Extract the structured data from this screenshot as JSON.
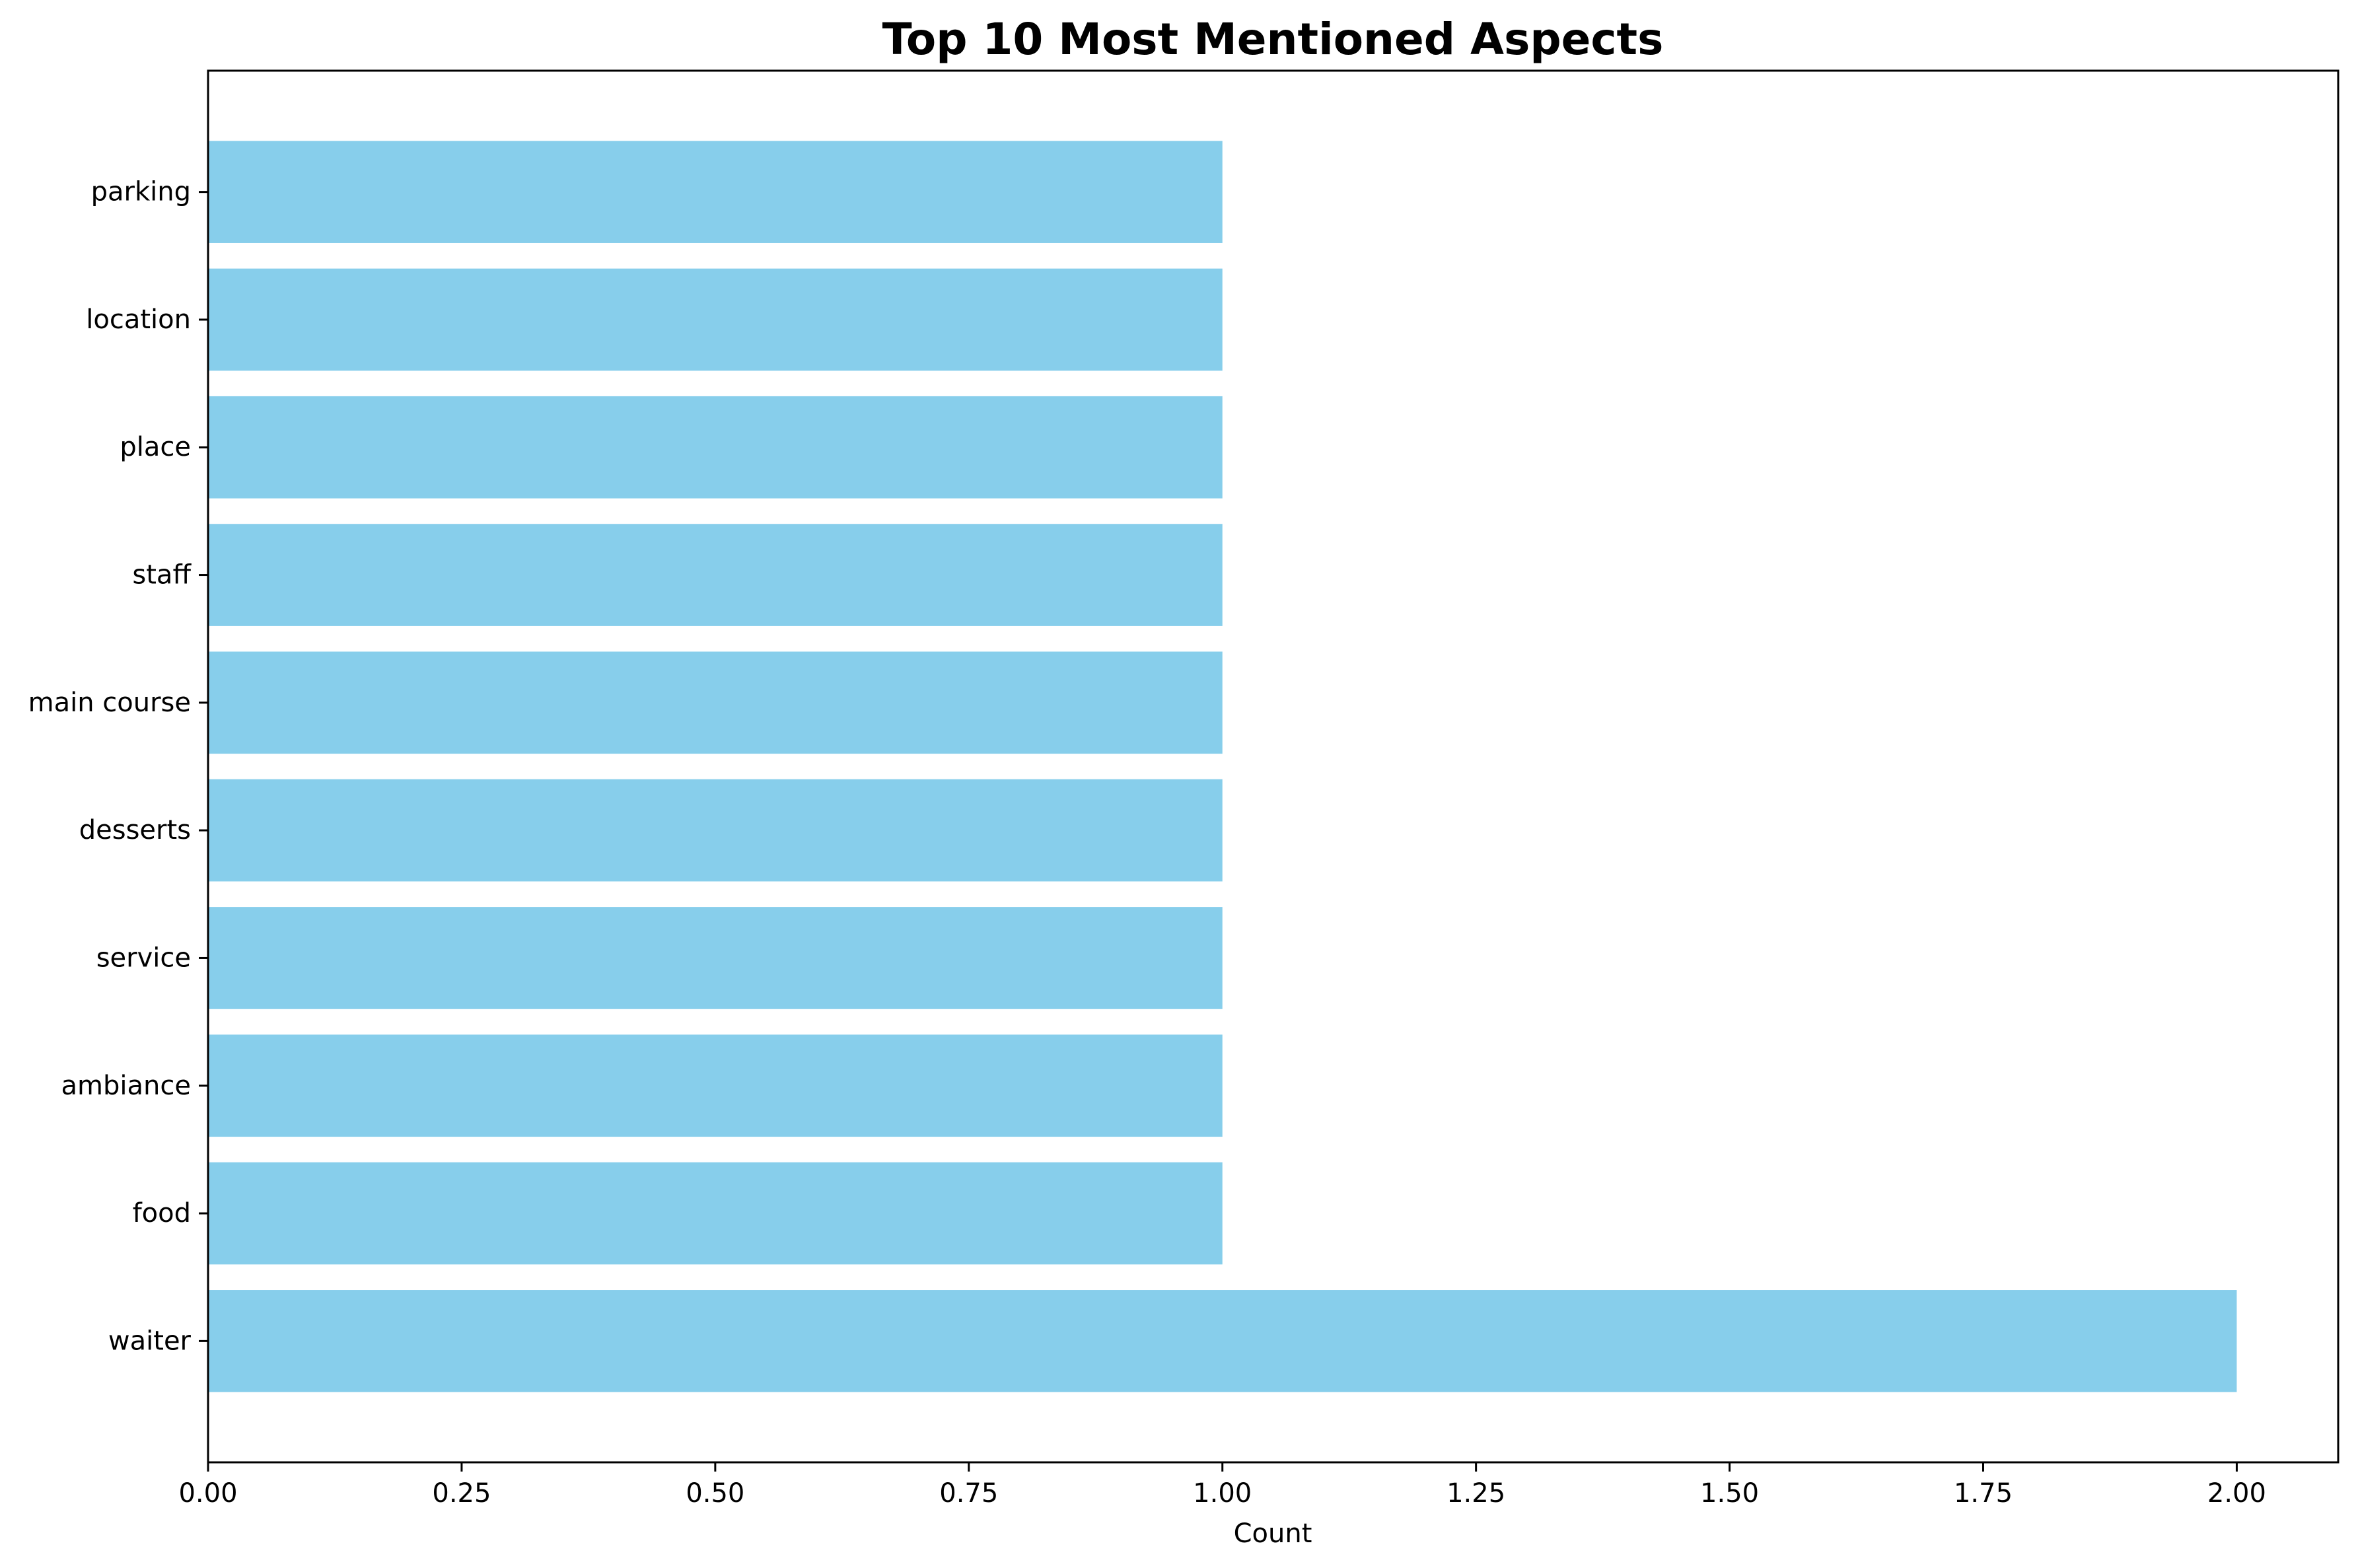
{
  "chart_data": {
    "type": "bar",
    "orientation": "horizontal",
    "title": "Top 10 Most Mentioned Aspects",
    "xlabel": "Count",
    "ylabel": "",
    "categories": [
      "waiter",
      "food",
      "ambiance",
      "service",
      "desserts",
      "main course",
      "staff",
      "place",
      "location",
      "parking"
    ],
    "values": [
      2,
      1,
      1,
      1,
      1,
      1,
      1,
      1,
      1,
      1
    ],
    "xlim": [
      0,
      2.1
    ],
    "xticks": [
      "0.00",
      "0.25",
      "0.50",
      "0.75",
      "1.00",
      "1.25",
      "1.50",
      "1.75",
      "2.00"
    ],
    "bar_color": "#87ceeb",
    "grid": false,
    "legend": "none"
  }
}
